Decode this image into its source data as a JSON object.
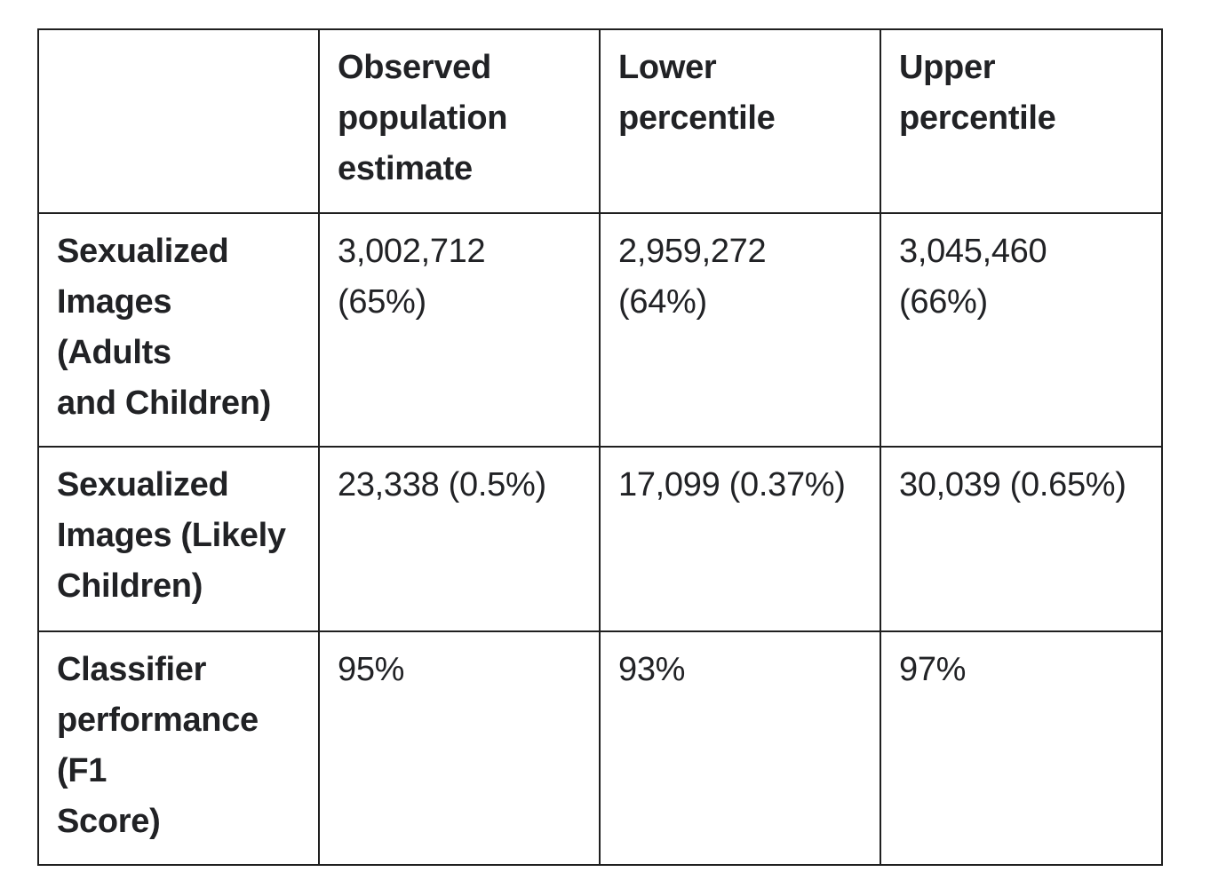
{
  "colors": {
    "border": "#1f1f1f",
    "text": "#212225",
    "background": "#ffffff"
  },
  "table": {
    "corner_cell": "",
    "header": {
      "columns": [
        {
          "label": "Observed population estimate",
          "lines": [
            "Observed",
            "population",
            "estimate"
          ]
        },
        {
          "label": "Lower percentile",
          "lines": [
            "Lower",
            "percentile"
          ]
        },
        {
          "label": "Upper percentile",
          "lines": [
            "Upper",
            "percentile"
          ]
        }
      ]
    },
    "rows": [
      {
        "label": "Sexualized Images (Adults and Children)",
        "label_lines": [
          "Sexualized",
          "Images",
          "(Adults",
          "and Children)"
        ],
        "cells": [
          [
            "3,002,712",
            "(65%)"
          ],
          [
            "2,959,272",
            "(64%)"
          ],
          [
            "3,045,460",
            "(66%)"
          ]
        ]
      },
      {
        "label": "Sexualized Images (Likely Children)",
        "label_lines": [
          "Sexualized",
          "Images (Likely",
          "Children)"
        ],
        "cells": [
          [
            "23,338 (0.5%)"
          ],
          [
            "17,099 (0.37%)"
          ],
          [
            "30,039 (0.65%)"
          ]
        ]
      },
      {
        "label": "Classifier performance (F1 Score)",
        "label_lines": [
          "Classifier",
          "performance",
          "(F1",
          "Score)"
        ],
        "cells": [
          [
            "95%"
          ],
          [
            "93%"
          ],
          [
            "97%"
          ]
        ]
      }
    ]
  },
  "chart_data": {
    "type": "table",
    "columns": [
      "",
      "Observed population estimate",
      "Lower percentile",
      "Upper percentile"
    ],
    "rows": [
      [
        "Sexualized Images (Adults and Children)",
        "3,002,712 (65%)",
        "2,959,272 (64%)",
        "3,045,460 (66%)"
      ],
      [
        "Sexualized Images (Likely Children)",
        "23,338 (0.5%)",
        "17,099 (0.37%)",
        "30,039 (0.65%)"
      ],
      [
        "Classifier performance (F1 Score)",
        "95%",
        "93%",
        "97%"
      ]
    ],
    "values_numeric": {
      "sexualized_images_adults_and_children": {
        "observed": 3002712,
        "observed_pct": 65,
        "lower": 2959272,
        "lower_pct": 64,
        "upper": 3045460,
        "upper_pct": 66
      },
      "sexualized_images_likely_children": {
        "observed": 23338,
        "observed_pct": 0.5,
        "lower": 17099,
        "lower_pct": 0.37,
        "upper": 30039,
        "upper_pct": 0.65
      },
      "classifier_performance_f1_score": {
        "observed_pct": 95,
        "lower_pct": 93,
        "upper_pct": 97
      }
    },
    "title": "",
    "grid": true,
    "legend": false
  }
}
